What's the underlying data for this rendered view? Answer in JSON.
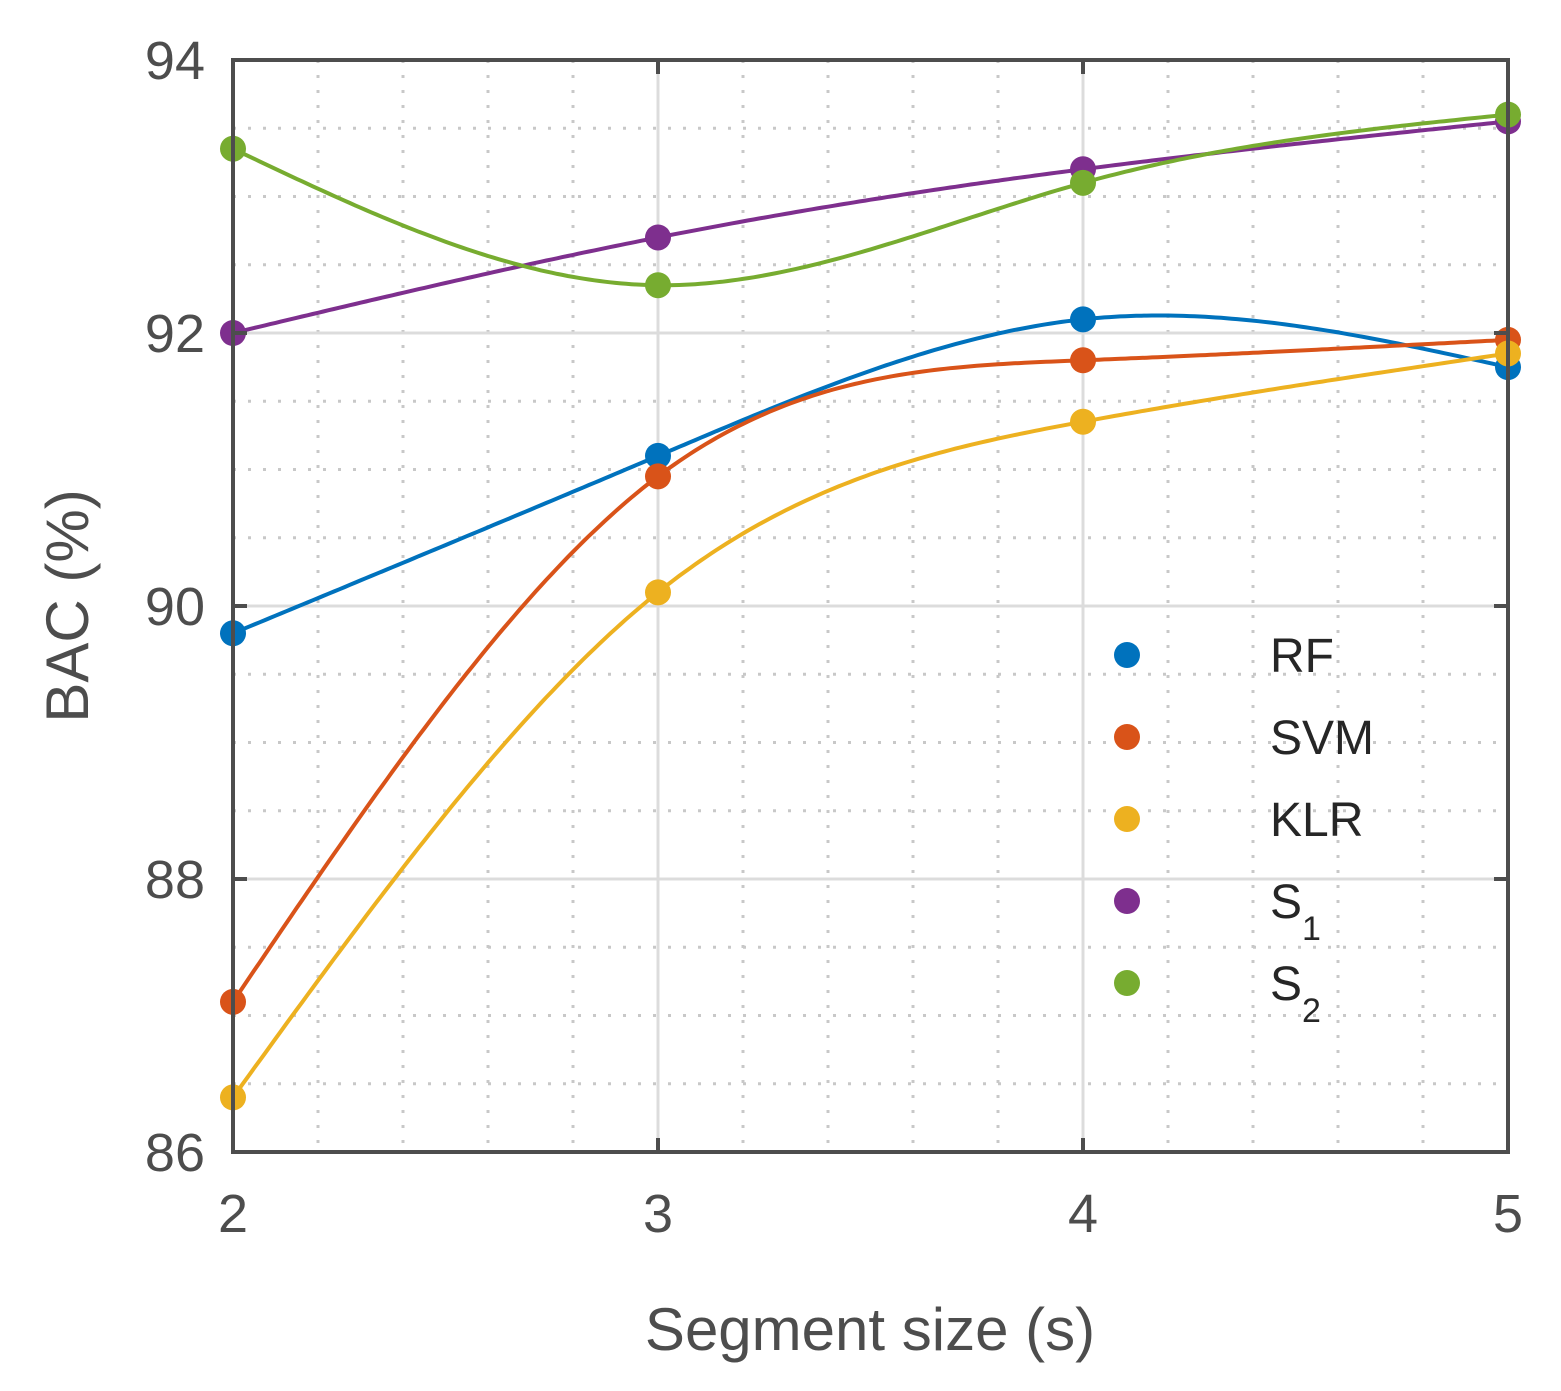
{
  "chart_data": {
    "type": "line",
    "title": "",
    "xlabel": "Segment size (s)",
    "ylabel": "BAC (%)",
    "x": [
      2,
      3,
      4,
      5
    ],
    "xlim": [
      2,
      5
    ],
    "ylim": [
      86,
      94
    ],
    "xticks": [
      "2",
      "3",
      "4",
      "5"
    ],
    "yticks": [
      "86",
      "88",
      "90",
      "92",
      "94"
    ],
    "grid": true,
    "legend_position": "lower-right",
    "series": [
      {
        "name": "RF",
        "label": "RF",
        "subscript": "",
        "color": "#0072BD",
        "values": [
          89.8,
          91.1,
          92.1,
          91.75
        ]
      },
      {
        "name": "SVM",
        "label": "SVM",
        "subscript": "",
        "color": "#D95319",
        "values": [
          87.1,
          90.95,
          91.8,
          91.95
        ]
      },
      {
        "name": "KLR",
        "label": "KLR",
        "subscript": "",
        "color": "#EDB120",
        "values": [
          86.4,
          90.1,
          91.35,
          91.85
        ]
      },
      {
        "name": "S1",
        "label": "S",
        "subscript": "1",
        "color": "#7E2F8E",
        "values": [
          92.0,
          92.7,
          93.2,
          93.55
        ]
      },
      {
        "name": "S2",
        "label": "S",
        "subscript": "2",
        "color": "#77AC30",
        "values": [
          93.35,
          92.35,
          93.1,
          93.6
        ]
      }
    ]
  }
}
